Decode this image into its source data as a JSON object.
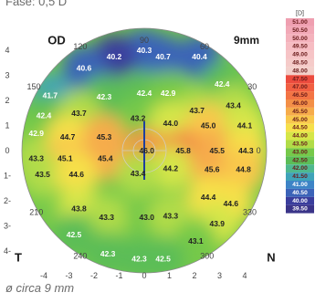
{
  "chart_data": {
    "type": "heatmap",
    "subtitle": "Fase: 0,5 D",
    "eye_label": "OD",
    "diameter_label": "9mm",
    "caption": "ø circa 9 mm",
    "meridian_labels": {
      "top": "90",
      "left": "T",
      "right": "N"
    },
    "axis_degrees": [
      {
        "deg": "90",
        "x": 0,
        "y": 4.4
      },
      {
        "deg": "120",
        "x": -2.55,
        "y": 4.15
      },
      {
        "deg": "60",
        "x": 2.4,
        "y": 4.15
      },
      {
        "deg": "150",
        "x": -4.4,
        "y": 2.55
      },
      {
        "deg": "30",
        "x": 4.3,
        "y": 2.55
      },
      {
        "deg": "0",
        "x": 4.55,
        "y": 0
      },
      {
        "deg": "210",
        "x": -4.3,
        "y": -2.45
      },
      {
        "deg": "330",
        "x": 4.2,
        "y": -2.45
      },
      {
        "deg": "240",
        "x": -2.55,
        "y": -4.2
      },
      {
        "deg": "300",
        "x": 2.5,
        "y": -4.2
      }
    ],
    "xticks": [
      "-4",
      "-3",
      "-2",
      "-1",
      "0",
      "1",
      "2",
      "3",
      "4"
    ],
    "yticks": [
      "4",
      "3",
      "2",
      "1",
      "0",
      "1-",
      "2-",
      "3-",
      "4-"
    ],
    "xlim": [
      -4.5,
      4.5
    ],
    "ylim": [
      -4.5,
      4.5
    ],
    "scale_unit": "[D]",
    "scale": [
      {
        "value": "51.00",
        "color": "#ef9fb0"
      },
      {
        "value": "50.50",
        "color": "#f2a9b7"
      },
      {
        "value": "50.00",
        "color": "#f4b2bc"
      },
      {
        "value": "49.50",
        "color": "#f6bcc2"
      },
      {
        "value": "49.00",
        "color": "#f6c4c6"
      },
      {
        "value": "48.50",
        "color": "#f5cbc9"
      },
      {
        "value": "48.00",
        "color": "#f3d0cb"
      },
      {
        "value": "47.50",
        "color": "#ec4b3e"
      },
      {
        "value": "47.00",
        "color": "#f15f42"
      },
      {
        "value": "46.50",
        "color": "#f37444"
      },
      {
        "value": "46.00",
        "color": "#f38f47"
      },
      {
        "value": "45.50",
        "color": "#f6ac4b"
      },
      {
        "value": "45.00",
        "color": "#f9c84c"
      },
      {
        "value": "44.50",
        "color": "#f6e04a"
      },
      {
        "value": "44.00",
        "color": "#d6e648"
      },
      {
        "value": "43.50",
        "color": "#b1dc48"
      },
      {
        "value": "43.00",
        "color": "#76c94a"
      },
      {
        "value": "42.50",
        "color": "#5cbd57"
      },
      {
        "value": "42.00",
        "color": "#4fb88e"
      },
      {
        "value": "41.50",
        "color": "#3fa3b8"
      },
      {
        "value": "41.00",
        "color": "#3d84c6"
      },
      {
        "value": "40.50",
        "color": "#3b63b8"
      },
      {
        "value": "40.00",
        "color": "#3a3d9c"
      },
      {
        "value": "39.50",
        "color": "#3a3488"
      }
    ],
    "points": [
      {
        "x": 0.0,
        "y": 4.0,
        "v": "40.3"
      },
      {
        "x": -1.2,
        "y": 3.75,
        "v": "40.2"
      },
      {
        "x": 0.75,
        "y": 3.75,
        "v": "40.7"
      },
      {
        "x": -2.4,
        "y": 3.3,
        "v": "40.6"
      },
      {
        "x": 2.2,
        "y": 3.75,
        "v": "40.4"
      },
      {
        "x": -3.75,
        "y": 2.2,
        "v": "41.7"
      },
      {
        "x": -1.6,
        "y": 2.15,
        "v": "42.3"
      },
      {
        "x": 0.0,
        "y": 2.3,
        "v": "42.4"
      },
      {
        "x": 0.95,
        "y": 2.3,
        "v": "42.9"
      },
      {
        "x": 3.1,
        "y": 2.65,
        "v": "42.4"
      },
      {
        "x": -4.0,
        "y": 1.4,
        "v": "42.4"
      },
      {
        "x": -2.6,
        "y": 1.5,
        "v": "43.7"
      },
      {
        "x": 2.1,
        "y": 1.6,
        "v": "43.7"
      },
      {
        "x": 3.55,
        "y": 1.8,
        "v": "43.4"
      },
      {
        "x": -0.25,
        "y": 1.3,
        "v": "43.2"
      },
      {
        "x": -4.3,
        "y": 0.7,
        "v": "42.9"
      },
      {
        "x": 1.05,
        "y": 1.1,
        "v": "44.0"
      },
      {
        "x": 2.55,
        "y": 1.0,
        "v": "45.0"
      },
      {
        "x": 4.0,
        "y": 1.0,
        "v": "44.1"
      },
      {
        "x": -3.05,
        "y": 0.55,
        "v": "44.7"
      },
      {
        "x": -1.6,
        "y": 0.55,
        "v": "45.3"
      },
      {
        "x": 0.1,
        "y": 0.0,
        "v": "46.0"
      },
      {
        "x": 1.55,
        "y": 0.0,
        "v": "45.8"
      },
      {
        "x": 2.9,
        "y": 0.0,
        "v": "45.5"
      },
      {
        "x": 4.05,
        "y": 0.0,
        "v": "44.3"
      },
      {
        "x": -4.3,
        "y": -0.3,
        "v": "43.3"
      },
      {
        "x": -3.15,
        "y": -0.3,
        "v": "45.1"
      },
      {
        "x": -1.55,
        "y": -0.3,
        "v": "45.4"
      },
      {
        "x": 1.05,
        "y": -0.7,
        "v": "44.2"
      },
      {
        "x": 2.7,
        "y": -0.75,
        "v": "45.6"
      },
      {
        "x": 3.95,
        "y": -0.75,
        "v": "44.8"
      },
      {
        "x": -4.05,
        "y": -0.95,
        "v": "43.5"
      },
      {
        "x": -2.7,
        "y": -0.95,
        "v": "44.6"
      },
      {
        "x": -0.25,
        "y": -0.9,
        "v": "43.4"
      },
      {
        "x": 2.55,
        "y": -1.85,
        "v": "44.4"
      },
      {
        "x": 3.45,
        "y": -2.1,
        "v": "44.6"
      },
      {
        "x": -2.6,
        "y": -2.3,
        "v": "43.8"
      },
      {
        "x": -1.5,
        "y": -2.65,
        "v": "43.3"
      },
      {
        "x": 0.1,
        "y": -2.65,
        "v": "43.0"
      },
      {
        "x": 1.05,
        "y": -2.6,
        "v": "43.3"
      },
      {
        "x": 2.9,
        "y": -2.9,
        "v": "43.9"
      },
      {
        "x": 2.05,
        "y": -3.6,
        "v": "43.1"
      },
      {
        "x": -2.8,
        "y": -3.35,
        "v": "42.5"
      },
      {
        "x": -1.45,
        "y": -4.1,
        "v": "42.3"
      },
      {
        "x": -0.2,
        "y": -4.3,
        "v": "42.3"
      },
      {
        "x": 0.75,
        "y": -4.3,
        "v": "42.5"
      }
    ]
  }
}
